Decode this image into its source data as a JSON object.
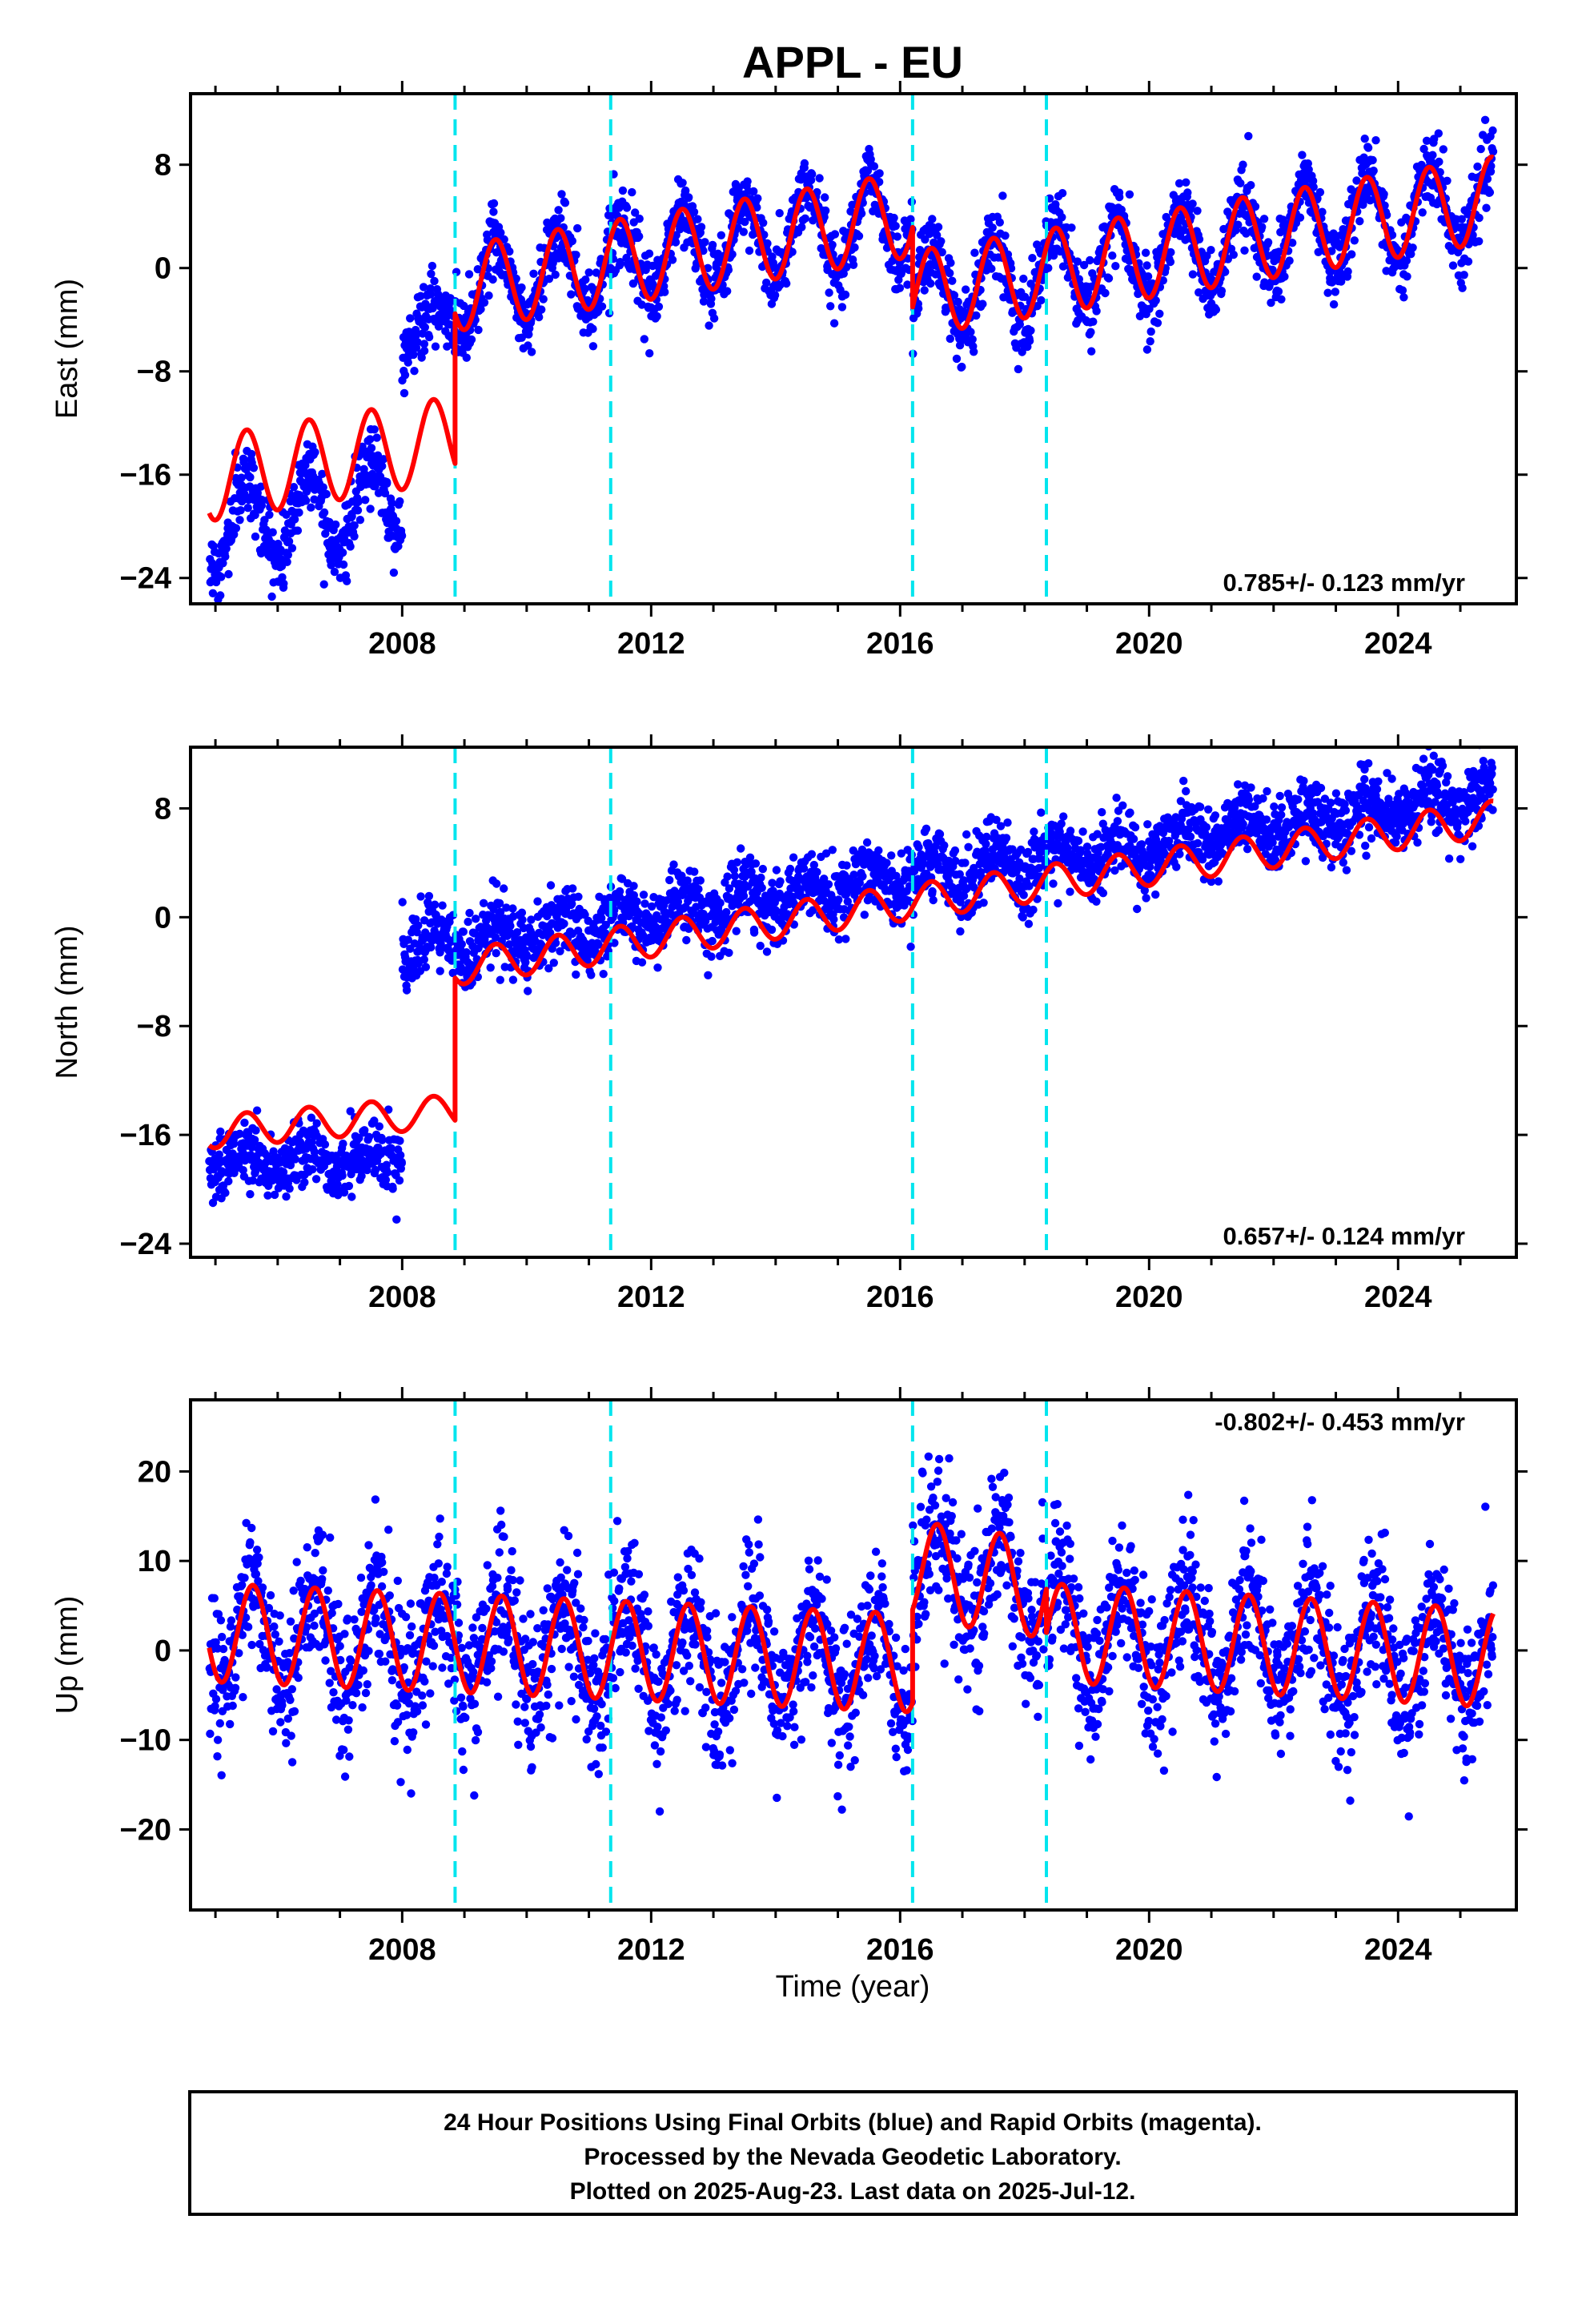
{
  "figure": {
    "title": "APPL - EU",
    "xlabel": "Time (year)",
    "footer": [
      "24 Hour Positions Using Final Orbits (blue) and Rapid Orbits (magenta).",
      "Processed by the Nevada Geodetic Laboratory.",
      "Plotted on 2025-Aug-23. Last data on 2025-Jul-12."
    ],
    "colors": {
      "points": "#0000ff",
      "model": "#ff0000",
      "event_lines": "#00e5ee",
      "frame": "#000000"
    }
  },
  "chart_data": [
    {
      "type": "scatter",
      "component": "east",
      "ylabel": "East (mm)",
      "xlim": [
        2004.6,
        2025.9
      ],
      "ylim": [
        -26,
        13.5
      ],
      "xticks": [
        2008,
        2012,
        2016,
        2020,
        2024
      ],
      "yticks": [
        -24,
        -16,
        -8,
        0,
        8
      ],
      "rate_text": "0.785+/- 0.123 mm/yr",
      "rate_position": "bottom-right",
      "event_lines": [
        2008.85,
        2011.35,
        2016.2,
        2018.35
      ],
      "series": [
        {
          "kind": "points",
          "segments": [
            {
              "x_start": 2004.9,
              "x_end": 2008.0,
              "start": -20.2,
              "rate": 0.785,
              "amplitude": 3.3,
              "phase_peak": 0.5,
              "noise": 1.4
            },
            {
              "x_start": 2008.0,
              "x_end": 2008.85,
              "start": -5.0,
              "rate": 0.785,
              "amplitude": 1.5,
              "phase_peak": 0.5,
              "noise": 1.4
            },
            {
              "x_start": 2008.85,
              "x_end": 2016.2,
              "start": -1.6,
              "rate": 0.785,
              "amplitude": 3.3,
              "phase_peak": 0.5,
              "noise": 1.4
            },
            {
              "x_start": 2016.2,
              "x_end": 2025.53,
              "start": -2.0,
              "rate": 0.785,
              "amplitude": 3.3,
              "phase_peak": 0.5,
              "noise": 1.4
            }
          ]
        },
        {
          "kind": "model",
          "segments": [
            {
              "x_start": 2004.9,
              "x_end": 2008.85,
              "start": -16.3,
              "rate": 0.785,
              "amplitude": 3.3,
              "phase_peak": 0.5
            },
            {
              "x_start": 2008.85,
              "x_end": 2016.2,
              "start": -1.6,
              "rate": 0.785,
              "amplitude": 3.3,
              "phase_peak": 0.5
            },
            {
              "x_start": 2016.2,
              "x_end": 2025.53,
              "start": -2.0,
              "rate": 0.785,
              "amplitude": 3.3,
              "phase_peak": 0.5
            }
          ]
        }
      ]
    },
    {
      "type": "scatter",
      "component": "north",
      "ylabel": "North (mm)",
      "xlim": [
        2004.6,
        2025.9
      ],
      "ylim": [
        -25,
        12.5
      ],
      "xticks": [
        2008,
        2012,
        2016,
        2020,
        2024
      ],
      "yticks": [
        -24,
        -16,
        -8,
        0,
        8
      ],
      "rate_text": "0.657+/- 0.124 mm/yr",
      "rate_position": "bottom-right",
      "event_lines": [
        2008.85,
        2011.35,
        2016.2,
        2018.35
      ],
      "series": [
        {
          "kind": "points",
          "segments": [
            {
              "x_start": 2004.9,
              "x_end": 2008.0,
              "start": -18.0,
              "rate": 0.1,
              "amplitude": 0.8,
              "phase_peak": 0.5,
              "noise": 1.2
            },
            {
              "x_start": 2008.0,
              "x_end": 2025.53,
              "start": -2.6,
              "rate": 0.657,
              "amplitude": 1.0,
              "phase_peak": 0.5,
              "noise": 1.3
            }
          ]
        },
        {
          "kind": "model",
          "segments": [
            {
              "x_start": 2004.9,
              "x_end": 2008.85,
              "start": -15.8,
              "rate": 0.4,
              "amplitude": 1.2,
              "phase_peak": 0.5
            },
            {
              "x_start": 2008.85,
              "x_end": 2025.53,
              "start": -3.7,
              "rate": 0.657,
              "amplitude": 1.3,
              "phase_peak": 0.5
            }
          ]
        }
      ]
    },
    {
      "type": "scatter",
      "component": "up",
      "ylabel": "Up (mm)",
      "xlim": [
        2004.6,
        2025.9
      ],
      "ylim": [
        -29,
        28
      ],
      "xticks": [
        2008,
        2012,
        2016,
        2020,
        2024
      ],
      "yticks": [
        -20,
        -10,
        0,
        10,
        20
      ],
      "rate_text": "-0.802+/- 0.453 mm/yr",
      "rate_position": "top-right",
      "event_lines": [
        2008.85,
        2011.35,
        2016.2,
        2018.35
      ],
      "series": [
        {
          "kind": "points",
          "segments": [
            {
              "x_start": 2004.9,
              "x_end": 2016.2,
              "start": 2.0,
              "rate": -0.3,
              "amplitude": 5.5,
              "phase_peak": 0.6,
              "noise": 4.0
            },
            {
              "x_start": 2016.2,
              "x_end": 2018.35,
              "start": 9.0,
              "rate": -1.0,
              "amplitude": 5.5,
              "phase_peak": 0.6,
              "noise": 4.0
            },
            {
              "x_start": 2018.35,
              "x_end": 2025.53,
              "start": 2.0,
              "rate": -0.4,
              "amplitude": 5.5,
              "phase_peak": 0.6,
              "noise": 4.0
            }
          ]
        },
        {
          "kind": "model",
          "segments": [
            {
              "x_start": 2004.9,
              "x_end": 2016.2,
              "start": 2.0,
              "rate": -0.3,
              "amplitude": 5.5,
              "phase_peak": 0.6
            },
            {
              "x_start": 2016.2,
              "x_end": 2018.35,
              "start": 9.0,
              "rate": -1.0,
              "amplitude": 5.5,
              "phase_peak": 0.6
            },
            {
              "x_start": 2018.35,
              "x_end": 2025.53,
              "start": 2.0,
              "rate": -0.4,
              "amplitude": 5.5,
              "phase_peak": 0.6
            }
          ]
        }
      ]
    }
  ]
}
